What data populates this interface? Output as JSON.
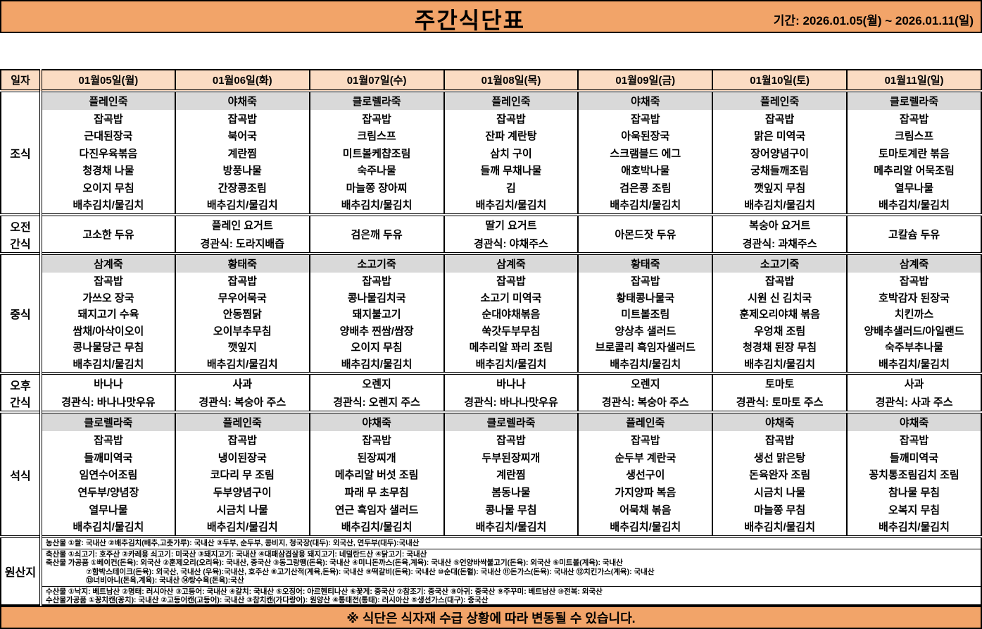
{
  "header": {
    "title": "주간식단표",
    "period": "기간: 2026.01.05(월) ~ 2026.01.11(일)"
  },
  "labels": {
    "date": "일자"
  },
  "days": [
    "01월05일(월)",
    "01월06일(화)",
    "01월07일(수)",
    "01월08일(목)",
    "01월09일(금)",
    "01월10일(토)",
    "01월11일(일)"
  ],
  "colors": {
    "accent_orange": "#F2A469",
    "date_peach": "#FBDCC3",
    "porridge_gray": "#D9D9D9"
  },
  "meals": {
    "breakfast": {
      "label": "조식",
      "days": [
        {
          "porridge": "플레인죽",
          "items": [
            "잡곡밥",
            "근대된장국",
            "다진우육볶음",
            "청경채 나물",
            "오이지 무침",
            "배추김치/물김치"
          ]
        },
        {
          "porridge": "야채죽",
          "items": [
            "잡곡밥",
            "북어국",
            "계란찜",
            "방풍나물",
            "간장콩조림",
            "배추김치/물김치"
          ]
        },
        {
          "porridge": "클로렐라죽",
          "items": [
            "잡곡밥",
            "크림스프",
            "미트볼케챱조림",
            "숙주나물",
            "마늘쫑 장아찌",
            "배추김치/물김치"
          ]
        },
        {
          "porridge": "플레인죽",
          "items": [
            "잡곡밥",
            "잔파 계란탕",
            "삼치 구이",
            "들깨 무채나물",
            "김",
            "배추김치/물김치"
          ]
        },
        {
          "porridge": "야채죽",
          "items": [
            "잡곡밥",
            "아욱된장국",
            "스크램블드 에그",
            "애호박나물",
            "검은콩 조림",
            "배추김치/물김치"
          ]
        },
        {
          "porridge": "플레인죽",
          "items": [
            "잡곡밥",
            "맑은 미역국",
            "장어양념구이",
            "궁채들깨조림",
            "깻잎지 무침",
            "배추김치/물김치"
          ]
        },
        {
          "porridge": "클로렐라죽",
          "items": [
            "잡곡밥",
            "크림스프",
            "토마토계란 볶음",
            "메추리알 어묵조림",
            "열무나물",
            "배추김치/물김치"
          ]
        }
      ]
    },
    "morning_snack": {
      "label": "오전 간식",
      "days": [
        {
          "lines": [
            "고소한 두유"
          ]
        },
        {
          "lines": [
            "플레인 요거트",
            "경관식: 도라지배즙"
          ]
        },
        {
          "lines": [
            "검은깨 두유"
          ]
        },
        {
          "lines": [
            "딸기 요거트",
            "경관식: 야채주스"
          ]
        },
        {
          "lines": [
            "아몬드잣 두유"
          ]
        },
        {
          "lines": [
            "복숭아 요거트",
            "경관식: 과채주스"
          ]
        },
        {
          "lines": [
            "고칼슘 두유"
          ]
        }
      ]
    },
    "lunch": {
      "label": "중식",
      "days": [
        {
          "porridge": "삼계죽",
          "items": [
            "잡곡밥",
            "가쓰오 장국",
            "돼지고기 수육",
            "쌈채/아삭이오이",
            "콩나물당근 무침",
            "배추김치/물김치"
          ]
        },
        {
          "porridge": "황태죽",
          "items": [
            "잡곡밥",
            "무우어묵국",
            "안동찜닭",
            "오이부추무침",
            "깻잎지",
            "배추김치/물김치"
          ]
        },
        {
          "porridge": "소고기죽",
          "items": [
            "잡곡밥",
            "콩나물김치국",
            "돼지불고기",
            "양배추 찐쌈/쌈장",
            "오이지 무침",
            "배추김치/물김치"
          ]
        },
        {
          "porridge": "삼계죽",
          "items": [
            "잡곡밥",
            "소고기 미역국",
            "순대야채볶음",
            "쑥갓두부무침",
            "메추리알 꽈리 조림",
            "배추김치/물김치"
          ]
        },
        {
          "porridge": "황태죽",
          "items": [
            "잡곡밥",
            "황태콩나물국",
            "미트볼조림",
            "양상추 샐러드",
            "브로콜리 흑임자샐러드",
            "배추김치/물김치"
          ]
        },
        {
          "porridge": "소고기죽",
          "items": [
            "잡곡밥",
            "시원 신 김치국",
            "훈제오리야채 볶음",
            "우엉채 조림",
            "청경채 된장 무침",
            "배추김치/물김치"
          ]
        },
        {
          "porridge": "삼계죽",
          "items": [
            "잡곡밥",
            "호박감자 된장국",
            "치킨까스",
            "양배추샐러드/아일랜드",
            "숙주부추나물",
            "배추김치/물김치"
          ]
        }
      ]
    },
    "afternoon_snack": {
      "label": "오후 간식",
      "days": [
        {
          "lines": [
            "바나나",
            "경관식: 바나나맛우유"
          ]
        },
        {
          "lines": [
            "사과",
            "경관식: 복숭아 주스"
          ]
        },
        {
          "lines": [
            "오렌지",
            "경관식: 오렌지 주스"
          ]
        },
        {
          "lines": [
            "바나나",
            "경관식: 바나나맛우유"
          ]
        },
        {
          "lines": [
            "오렌지",
            "경관식: 복숭아 주스"
          ]
        },
        {
          "lines": [
            "토마토",
            "경관식: 토마토 주스"
          ]
        },
        {
          "lines": [
            "사과",
            "경관식: 사과 주스"
          ]
        }
      ]
    },
    "dinner": {
      "label": "석식",
      "days": [
        {
          "porridge": "클로렐라죽",
          "items": [
            "잡곡밥",
            "들깨미역국",
            "임연수어조림",
            "연두부/양념장",
            "열무나물",
            "배추김치/물김치"
          ]
        },
        {
          "porridge": "플레인죽",
          "items": [
            "잡곡밥",
            "냉이된장국",
            "코다리 무 조림",
            "두부양념구이",
            "시금치 나물",
            "배추김치/물김치"
          ]
        },
        {
          "porridge": "야채죽",
          "items": [
            "잡곡밥",
            "된장찌개",
            "메추리알 버섯 조림",
            "파래 무 초무침",
            "연근 흑임자 샐러드",
            "배추김치/물김치"
          ]
        },
        {
          "porridge": "클로렐라죽",
          "items": [
            "잡곡밥",
            "두부된장찌개",
            "계란찜",
            "봄동나물",
            "콩나물 무침",
            "배추김치/물김치"
          ]
        },
        {
          "porridge": "플레인죽",
          "items": [
            "잡곡밥",
            "순두부 계란국",
            "생선구이",
            "가지양파 복음",
            "어묵채 볶음",
            "배추김치/물김치"
          ]
        },
        {
          "porridge": "야채죽",
          "items": [
            "잡곡밥",
            "생선 맑은탕",
            "돈육완자 조림",
            "시금치 나물",
            "마늘쫑 무침",
            "배추김치/물김치"
          ]
        },
        {
          "porridge": "야채죽",
          "items": [
            "잡곡밥",
            "들깨미역국",
            "꽁치통조림김치 조림",
            "참나물 무침",
            "오복지 무침",
            "배추김치/물김치"
          ]
        }
      ]
    }
  },
  "origin": {
    "label": "원산지",
    "groups": [
      {
        "lines": [
          {
            "text": "농산물  ①쌀: 국내산  ②배추김치(배추,고춧가루): 국내산  ③두부, 순두부, 콩비지, 청국장(대두): 외국산, 연두부(대두):국내산",
            "indent": false
          }
        ]
      },
      {
        "lines": [
          {
            "text": "축산물  ①쇠고기: 호주산  ②카레용 쇠고기: 미국산  ③돼지고기: 국내산  ④대패삼겹살용 돼지고기: 네덜란드산  ④닭고기: 국내산",
            "indent": false
          },
          {
            "text": "축산물 가공품  ①베이컨(돈육): 외국산  ②훈제오리(오리육): 국내산, 중국산  ③동그랑땡(돈육): 국내산  ④미니돈까스(돈육,계육): 국내산  ⑤언양바싹불고기(돈육): 외국산  ⑥미트볼(계육): 국내산",
            "indent": false
          },
          {
            "text": "⑦함박스테이크(돈육): 외국산, 국내산 (우육):국내산, 호주산  ⑧고기산적(계육,돈육): 국내산  ⑨떡갈비(돈육): 국내산  ⑩순대(돈혈): 국내산  ⑪돈가스(돈육): 국내산 ⑫치킨가스(계육): 국내산",
            "indent": true
          },
          {
            "text": "⑬너비아니(돈육,계육): 국내산  ⑭탕수육(돈육):국산",
            "indent": true
          }
        ]
      },
      {
        "lines": [
          {
            "text": "수산물  ①낙지: 베트남산  ②명태: 러시아산  ③고등어: 국내산  ④갈치: 국내산  ⑤오징어: 아르헨티나산  ⑥꽃게: 중국산  ⑦참조기: 중국산  ⑧아귀: 중국산  ⑨주꾸미: 베트남산  ⑩전복: 외국산",
            "indent": false
          },
          {
            "text": "수산물가공품  ①꽁치캔(꽁치): 국내산  ②고등어캔(고등어): 국내산  ③참치캔(가다랑어): 원양산  ④통태전(통태): 러시아산  ⑤생선가스(대구): 중국산",
            "indent": false
          }
        ]
      }
    ]
  },
  "footer": {
    "note": "※ 식단은 식자재 수급 상황에 따라 변동될 수 있습니다."
  }
}
